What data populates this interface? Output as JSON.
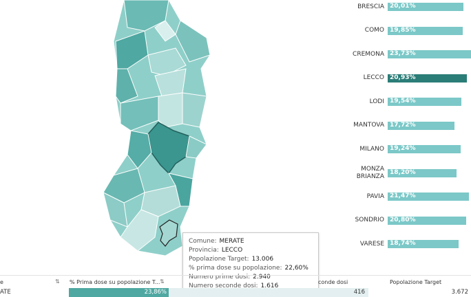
{
  "chart_data": {
    "type": "bar",
    "orientation": "horizontal",
    "categories": [
      "BRESCIA",
      "COMO",
      "CREMONA",
      "LECCO",
      "LODI",
      "MANTOVA",
      "MILANO",
      "MONZA BRIANZA",
      "PAVIA",
      "SONDRIO",
      "VARESE"
    ],
    "values": [
      20.01,
      19.85,
      23.73,
      20.93,
      19.54,
      17.72,
      19.24,
      18.2,
      21.47,
      20.8,
      18.74
    ],
    "value_labels": [
      "20,01%",
      "19,85%",
      "23,73%",
      "20,93%",
      "19,54%",
      "17,72%",
      "19,24%",
      "18,20%",
      "21,47%",
      "20,80%",
      "18,74%"
    ],
    "colors": [
      "#7cc8c8",
      "#7cc8c8",
      "#7cc8c8",
      "#2b7d78",
      "#7cc8c8",
      "#7cc8c8",
      "#7cc8c8",
      "#7cc8c8",
      "#7cc8c8",
      "#7cc8c8",
      "#7cc8c8"
    ]
  },
  "tooltip": {
    "rows": [
      {
        "label": "Comune:",
        "value": "MERATE"
      },
      {
        "label": "Provincia:",
        "value": "LECCO"
      },
      {
        "label": "Popolazione Target:",
        "value": "13.006"
      },
      {
        "label": "% prima dose su popolazione:",
        "value": "22,60%"
      },
      {
        "label": "Numero prime dosi:",
        "value": "2.940"
      },
      {
        "label": "Numero seconde dosi:",
        "value": "1.616"
      }
    ]
  },
  "table": {
    "header": [
      "e",
      "% Prima dose su popolazione T...",
      "conde dosi",
      "Popolazione Target"
    ],
    "rows": [
      [
        "ATE",
        "23,86%",
        "416",
        "3.672"
      ]
    ]
  }
}
